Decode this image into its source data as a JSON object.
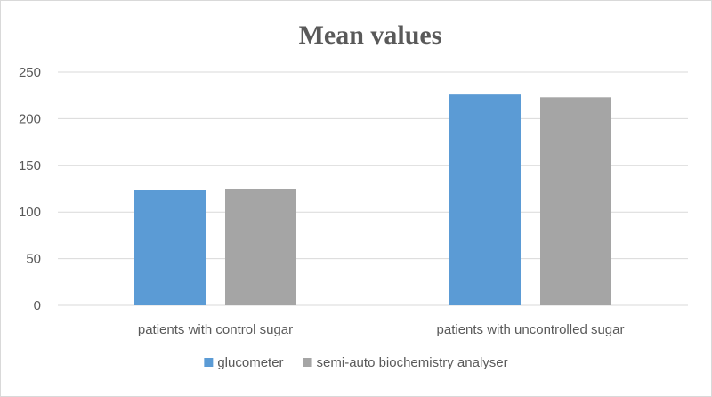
{
  "chart_data": {
    "type": "bar",
    "title": "Mean values",
    "xlabel": "",
    "ylabel": "",
    "categories": [
      "patients with control sugar",
      "patients with uncontrolled sugar"
    ],
    "series": [
      {
        "name": "glucometer",
        "values": [
          124,
          226
        ],
        "color": "#5b9bd5"
      },
      {
        "name": "semi-auto biochemistry analyser",
        "values": [
          125,
          223
        ],
        "color": "#a5a5a5"
      }
    ],
    "ylim": [
      0,
      250
    ],
    "yticks": [
      0,
      50,
      100,
      150,
      200,
      250
    ],
    "grid": true,
    "legend_position": "bottom"
  }
}
